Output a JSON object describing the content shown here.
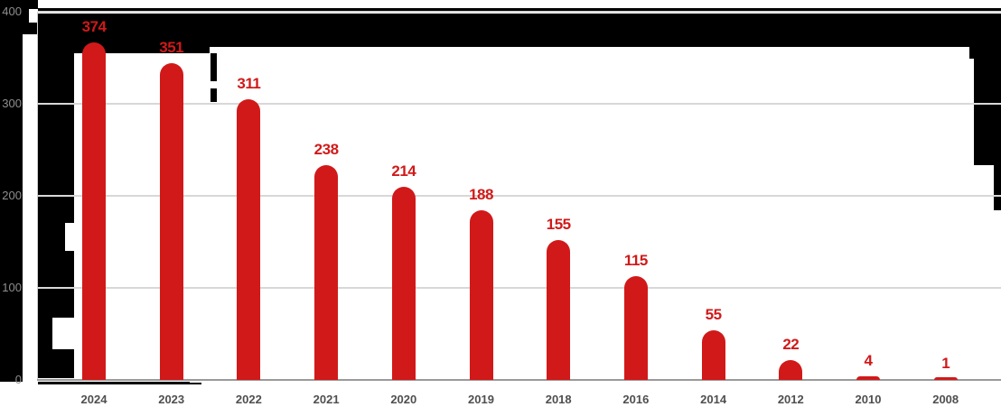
{
  "chart_data": {
    "type": "bar",
    "categories": [
      "2024",
      "2023",
      "2022",
      "2021",
      "2020",
      "2019",
      "2018",
      "2016",
      "2014",
      "2012",
      "2010",
      "2008"
    ],
    "values": [
      374,
      351,
      311,
      238,
      214,
      188,
      155,
      115,
      55,
      22,
      4,
      1
    ],
    "series": [
      {
        "name": "count-per-year",
        "values": [
          374,
          351,
          311,
          238,
          214,
          188,
          155,
          115,
          55,
          22,
          4,
          1
        ]
      }
    ],
    "title": "",
    "xlabel": "",
    "ylabel": "",
    "ylim": [
      0,
      400
    ],
    "yticks": [
      0,
      100,
      200,
      300,
      400
    ],
    "ytick_labels": [
      "0",
      "100",
      "200",
      "300",
      "400"
    ],
    "grid": true,
    "legend_position": "none",
    "data_labels_shown": true,
    "bar_shape": "rounded-top"
  },
  "colors": {
    "bar": "#d11919",
    "value_label": "#d11919",
    "y_tick_text": "#8f8f8f",
    "x_tick_text": "#4f4f4f",
    "gridline": "#d8d8d8",
    "x_axis_line": "#9a9a9a",
    "y_axis_line": "#cfcfcf",
    "glitch_background": "#000000",
    "plot_background": "#ffffff"
  }
}
